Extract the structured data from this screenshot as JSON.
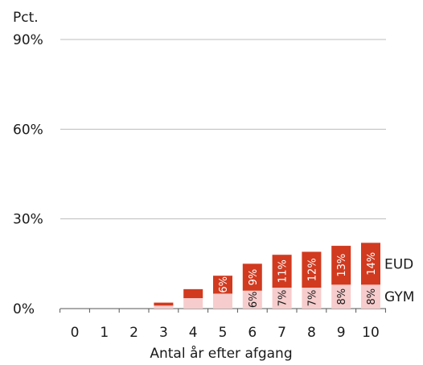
{
  "chart_data": {
    "type": "bar",
    "stacked": true,
    "unit_label": "Pct.",
    "xlabel": "Antal år efter afgang",
    "ylabel": "",
    "ylim": [
      0,
      90
    ],
    "yticks": [
      "0%",
      "30%",
      "60%",
      "90%"
    ],
    "ytick_values": [
      0,
      30,
      60,
      90
    ],
    "categories": [
      "0",
      "1",
      "2",
      "3",
      "4",
      "5",
      "6",
      "7",
      "8",
      "9",
      "10"
    ],
    "grid": true,
    "series": [
      {
        "name": "GYM",
        "color": "#f7cccc",
        "values": [
          0,
          0,
          0,
          1,
          3.5,
          5,
          6,
          7,
          7,
          8,
          8
        ],
        "data_labels": [
          "",
          "",
          "",
          "",
          "",
          "",
          "6%",
          "7%",
          "7%",
          "8%",
          "8%"
        ]
      },
      {
        "name": "EUD",
        "color": "#d13a1f",
        "values": [
          0,
          0,
          0,
          1,
          3,
          6,
          9,
          11,
          12,
          13,
          14
        ],
        "data_labels": [
          "",
          "",
          "",
          "",
          "",
          "6%",
          "9%",
          "11%",
          "12%",
          "13%",
          "14%"
        ]
      }
    ]
  }
}
